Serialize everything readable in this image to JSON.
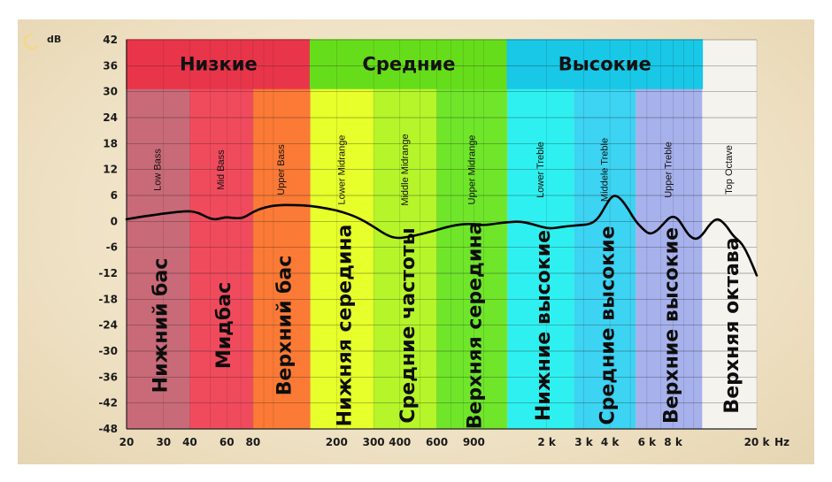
{
  "chart_data": {
    "type": "line",
    "ylabel": "dB",
    "ylim": [
      -48,
      42
    ],
    "y_ticks": [
      "42",
      "36",
      "30",
      "24",
      "18",
      "12",
      "6",
      "0",
      "-6",
      "-12",
      "-18",
      "-24",
      "-30",
      "-36",
      "-42",
      "-48"
    ],
    "x_scale": "log",
    "x_range_hz": [
      20,
      20000
    ],
    "x_ticks": [
      {
        "hz": 20,
        "label": "20"
      },
      {
        "hz": 30,
        "label": "30"
      },
      {
        "hz": 40,
        "label": "40"
      },
      {
        "hz": 60,
        "label": "60"
      },
      {
        "hz": 80,
        "label": "80"
      },
      {
        "hz": 200,
        "label": "200"
      },
      {
        "hz": 300,
        "label": "300"
      },
      {
        "hz": 400,
        "label": "400"
      },
      {
        "hz": 600,
        "label": "600"
      },
      {
        "hz": 900,
        "label": "900"
      },
      {
        "hz": 2000,
        "label": "2 k"
      },
      {
        "hz": 3000,
        "label": "3 k"
      },
      {
        "hz": 4000,
        "label": "4 k"
      },
      {
        "hz": 6000,
        "label": "6 k"
      },
      {
        "hz": 8000,
        "label": "8 k"
      },
      {
        "hz": 20000,
        "label": "20 k"
      }
    ],
    "x_unit": "Hz",
    "groups": [
      {
        "label": "Низкие",
        "from_hz": 20,
        "to_hz": 150,
        "color": "#e8354a"
      },
      {
        "label": "Средние",
        "from_hz": 150,
        "to_hz": 1300,
        "color": "#66dd1a"
      },
      {
        "label": "Высокие",
        "from_hz": 1300,
        "to_hz": 11000,
        "color": "#19c7e6"
      }
    ],
    "bands": [
      {
        "en": "Low Bass",
        "ru": "Нижний бас",
        "from_hz": 20,
        "to_hz": 40,
        "color": "#c96a78"
      },
      {
        "en": "Mid Bass",
        "ru": "Мидбас",
        "from_hz": 40,
        "to_hz": 80,
        "color": "#f04b5d"
      },
      {
        "en": "Upper Bass",
        "ru": "Верхний бас",
        "from_hz": 80,
        "to_hz": 150,
        "color": "#fb7a35"
      },
      {
        "en": "Lower Midrange",
        "ru": "Нижняя середина",
        "from_hz": 150,
        "to_hz": 300,
        "color": "#e7ff2a"
      },
      {
        "en": "Middle Midrange",
        "ru": "Средние частоты",
        "from_hz": 300,
        "to_hz": 600,
        "color": "#b5f52a"
      },
      {
        "en": "Upper Midrange",
        "ru": "Верхняя середина",
        "from_hz": 600,
        "to_hz": 1300,
        "color": "#6fe62a"
      },
      {
        "en": "Lower Treble",
        "ru": "Нижние высокие",
        "from_hz": 1300,
        "to_hz": 2700,
        "color": "#2ff0f0"
      },
      {
        "en": "Middele Treble",
        "ru": "Средние высокие",
        "from_hz": 2700,
        "to_hz": 5300,
        "color": "#3dd3f2"
      },
      {
        "en": "Upper Treble",
        "ru": "Верхние высокие",
        "from_hz": 5300,
        "to_hz": 11000,
        "color": "#a7b1ec"
      },
      {
        "en": "Top Octave",
        "ru": "Верхняя октава",
        "from_hz": 11000,
        "to_hz": 20000,
        "color": "#f4f3ee"
      }
    ],
    "series": [
      {
        "color": "#000000",
        "points": [
          [
            20,
            0.5
          ],
          [
            23,
            1
          ],
          [
            27,
            1.5
          ],
          [
            30,
            1.8
          ],
          [
            35,
            2.2
          ],
          [
            40,
            2.4
          ],
          [
            44,
            2.0
          ],
          [
            48,
            1.0
          ],
          [
            52,
            0.4
          ],
          [
            56,
            0.7
          ],
          [
            60,
            1.0
          ],
          [
            66,
            0.7
          ],
          [
            72,
            0.8
          ],
          [
            80,
            2.2
          ],
          [
            90,
            3.2
          ],
          [
            105,
            3.8
          ],
          [
            125,
            3.8
          ],
          [
            150,
            3.6
          ],
          [
            180,
            3.0
          ],
          [
            210,
            2.3
          ],
          [
            250,
            1.0
          ],
          [
            300,
            -1.2
          ],
          [
            340,
            -3.0
          ],
          [
            380,
            -3.9
          ],
          [
            430,
            -3.7
          ],
          [
            500,
            -3.0
          ],
          [
            580,
            -2.2
          ],
          [
            680,
            -1.2
          ],
          [
            800,
            -0.6
          ],
          [
            900,
            -0.6
          ],
          [
            1000,
            -0.9
          ],
          [
            1150,
            -0.5
          ],
          [
            1300,
            -0.2
          ],
          [
            1500,
            0.0
          ],
          [
            1700,
            -0.6
          ],
          [
            1900,
            -1.3
          ],
          [
            2100,
            -1.7
          ],
          [
            2400,
            -1.2
          ],
          [
            2800,
            -0.9
          ],
          [
            3200,
            -0.7
          ],
          [
            3500,
            0.5
          ],
          [
            3800,
            3.5
          ],
          [
            4100,
            6.0
          ],
          [
            4400,
            5.8
          ],
          [
            4800,
            3.5
          ],
          [
            5300,
            0.0
          ],
          [
            5800,
            -2.0
          ],
          [
            6200,
            -3.0
          ],
          [
            6700,
            -2.2
          ],
          [
            7200,
            -0.5
          ],
          [
            7800,
            1.2
          ],
          [
            8400,
            0.8
          ],
          [
            9000,
            -1.5
          ],
          [
            9600,
            -3.5
          ],
          [
            10300,
            -4.2
          ],
          [
            11000,
            -3.2
          ],
          [
            12000,
            -0.5
          ],
          [
            13000,
            0.8
          ],
          [
            14200,
            -0.7
          ],
          [
            15500,
            -3.5
          ],
          [
            17000,
            -5.0
          ],
          [
            18500,
            -8.5
          ],
          [
            20000,
            -12.5
          ]
        ]
      }
    ]
  }
}
